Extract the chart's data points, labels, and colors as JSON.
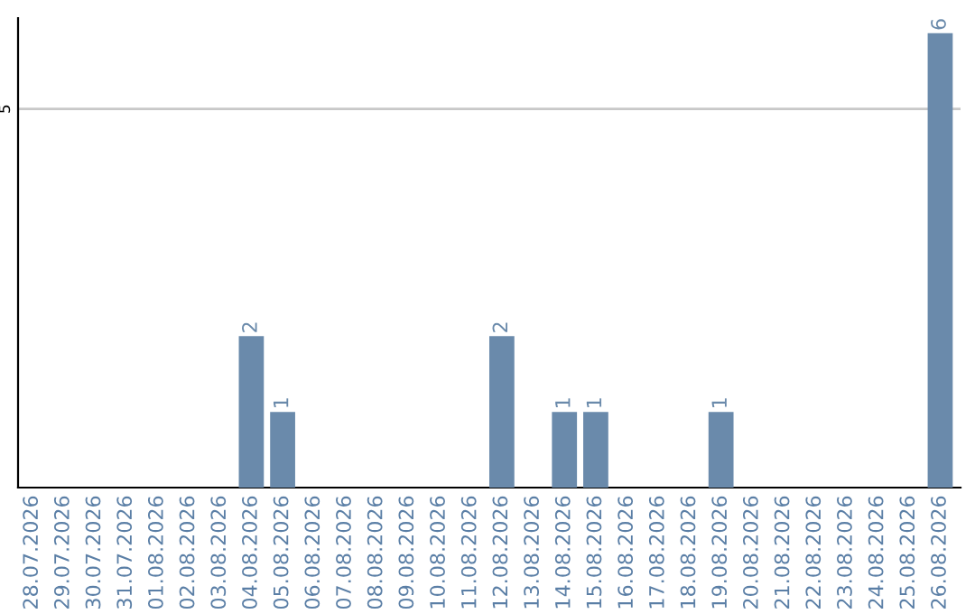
{
  "chart_data": {
    "type": "bar",
    "categories": [
      "28.07.2026",
      "29.07.2026",
      "30.07.2026",
      "31.07.2026",
      "01.08.2026",
      "02.08.2026",
      "03.08.2026",
      "04.08.2026",
      "05.08.2026",
      "06.08.2026",
      "07.08.2026",
      "08.08.2026",
      "09.08.2026",
      "10.08.2026",
      "11.08.2026",
      "12.08.2026",
      "13.08.2026",
      "14.08.2026",
      "15.08.2026",
      "16.08.2026",
      "17.08.2026",
      "18.08.2026",
      "19.08.2026",
      "20.08.2026",
      "21.08.2026",
      "22.08.2026",
      "23.08.2026",
      "24.08.2026",
      "25.08.2026",
      "26.08.2026"
    ],
    "values": [
      0,
      0,
      0,
      0,
      0,
      0,
      0,
      2,
      1,
      0,
      0,
      0,
      0,
      0,
      0,
      2,
      0,
      1,
      1,
      0,
      0,
      0,
      1,
      0,
      0,
      0,
      0,
      0,
      0,
      6
    ],
    "value_labels": [
      null,
      null,
      null,
      null,
      null,
      null,
      null,
      "2",
      "1",
      null,
      null,
      null,
      null,
      null,
      null,
      "2",
      null,
      "1",
      "1",
      null,
      null,
      null,
      "1",
      null,
      null,
      null,
      null,
      null,
      null,
      "6"
    ],
    "color": "#6a8aab",
    "ylim": [
      0,
      6.2
    ],
    "yticks": [
      5
    ],
    "grid": "y"
  }
}
